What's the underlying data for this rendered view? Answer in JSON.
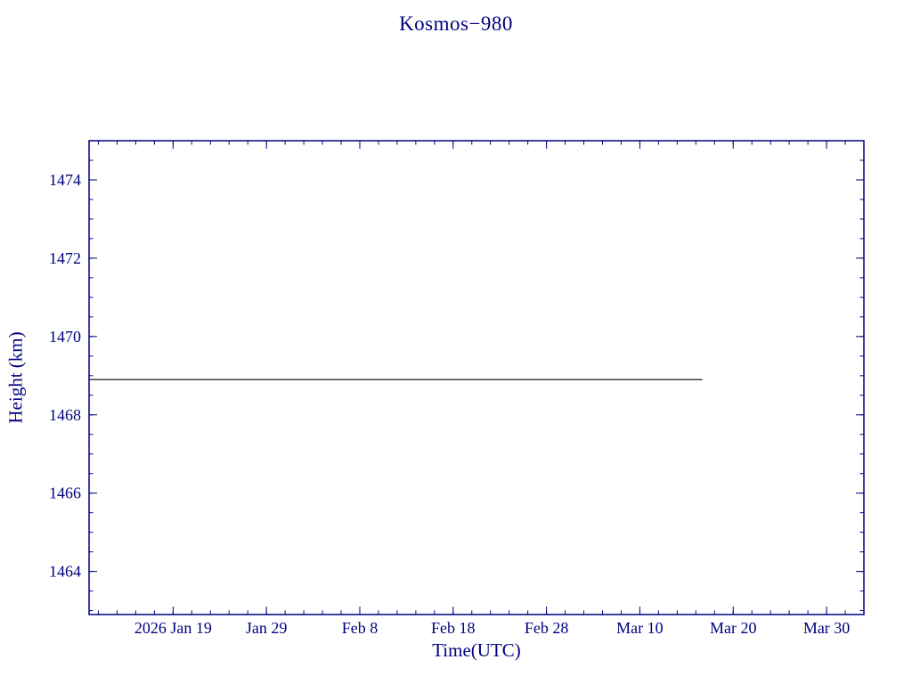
{
  "page": {
    "background": "#ffffff"
  },
  "chart_data": {
    "type": "line",
    "title": "Kosmos−980",
    "xlabel": "Time(UTC)",
    "ylabel": "Height (km)",
    "axis_color": "#000080",
    "background": "#ffffff",
    "grid": false,
    "legend": null,
    "x_range": [
      0,
      83
    ],
    "y_range": [
      1462.9,
      1475.0
    ],
    "x_ticks": [
      {
        "value": 9,
        "label": "2026 Jan 19"
      },
      {
        "value": 19,
        "label": "Jan 29"
      },
      {
        "value": 29,
        "label": "Feb  8"
      },
      {
        "value": 39,
        "label": "Feb 18"
      },
      {
        "value": 49,
        "label": "Feb 28"
      },
      {
        "value": 59,
        "label": "Mar 10"
      },
      {
        "value": 69,
        "label": "Mar 20"
      },
      {
        "value": 79,
        "label": "Mar 30"
      }
    ],
    "x_minor_step": 2,
    "y_ticks": [
      {
        "value": 1464,
        "label": "1464"
      },
      {
        "value": 1466,
        "label": "1466"
      },
      {
        "value": 1468,
        "label": "1468"
      },
      {
        "value": 1470,
        "label": "1470"
      },
      {
        "value": 1472,
        "label": "1472"
      },
      {
        "value": 1474,
        "label": "1474"
      }
    ],
    "y_minor_step": 0.5,
    "series": [
      {
        "name": "height-km",
        "color": "#000000",
        "points": [
          [
            0,
            1468.9
          ],
          [
            65.7,
            1468.9
          ]
        ]
      }
    ]
  }
}
